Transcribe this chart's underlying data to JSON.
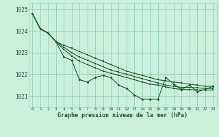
{
  "title": "Graphe pression niveau de la mer (hPa)",
  "bg_color": "#cceedd",
  "grid_color": "#99ccbb",
  "line_color": "#1a5c2a",
  "ylim": [
    1020.5,
    1025.3
  ],
  "yticks": [
    1021,
    1022,
    1023,
    1024,
    1025
  ],
  "xlim": [
    -0.5,
    23.5
  ],
  "xticks": [
    0,
    1,
    2,
    3,
    4,
    5,
    6,
    7,
    8,
    9,
    10,
    11,
    12,
    13,
    14,
    15,
    16,
    17,
    18,
    19,
    20,
    21,
    22,
    23
  ],
  "line1": [
    1024.8,
    1024.1,
    1023.9,
    1023.5,
    1023.35,
    1023.2,
    1023.05,
    1022.9,
    1022.75,
    1022.6,
    1022.45,
    1022.3,
    1022.15,
    1022.05,
    1021.95,
    1021.85,
    1021.75,
    1021.7,
    1021.65,
    1021.6,
    1021.55,
    1021.5,
    1021.45,
    1021.45
  ],
  "line2": [
    1024.8,
    1024.1,
    1023.9,
    1023.5,
    1023.25,
    1023.0,
    1022.8,
    1022.65,
    1022.5,
    1022.35,
    1022.2,
    1022.1,
    1022.0,
    1021.9,
    1021.8,
    1021.7,
    1021.6,
    1021.5,
    1021.45,
    1021.4,
    1021.4,
    1021.38,
    1021.35,
    1021.35
  ],
  "line3": [
    1024.8,
    1024.1,
    1023.9,
    1023.5,
    1023.15,
    1022.85,
    1022.6,
    1022.45,
    1022.3,
    1022.15,
    1022.05,
    1021.95,
    1021.85,
    1021.75,
    1021.65,
    1021.55,
    1021.5,
    1021.42,
    1021.35,
    1021.3,
    1021.3,
    1021.28,
    1021.28,
    1021.28
  ],
  "main_line": [
    1024.8,
    1024.1,
    1023.9,
    1023.5,
    1022.8,
    1022.65,
    1021.75,
    1021.65,
    1021.85,
    1021.95,
    1021.85,
    1021.5,
    1021.35,
    1021.05,
    1020.85,
    1020.85,
    1020.85,
    1021.85,
    1021.55,
    1021.3,
    1021.5,
    1021.2,
    1021.3,
    1021.45
  ]
}
